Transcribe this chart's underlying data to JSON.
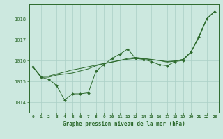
{
  "background_color": "#cce8df",
  "grid_color": "#aacfc6",
  "line_color": "#2d6a2d",
  "text_color": "#2d6a2d",
  "xlabel": "Graphe pression niveau de la mer (hPa)",
  "ylim": [
    1013.5,
    1018.7
  ],
  "yticks": [
    1014,
    1015,
    1016,
    1017,
    1018
  ],
  "xlim": [
    -0.5,
    23.5
  ],
  "xticks": [
    0,
    1,
    2,
    3,
    4,
    5,
    6,
    7,
    8,
    9,
    10,
    11,
    12,
    13,
    14,
    15,
    16,
    17,
    18,
    19,
    20,
    21,
    22,
    23
  ],
  "series": [
    [
      1015.7,
      1015.2,
      1015.1,
      1014.8,
      1014.1,
      1014.4,
      1014.4,
      1014.45,
      1015.5,
      1015.8,
      1016.1,
      1016.3,
      1016.55,
      1016.1,
      1016.05,
      1015.95,
      1015.8,
      1015.75,
      1015.95,
      1016.0,
      1016.4,
      1017.15,
      1018.0,
      1018.35
    ],
    [
      1015.7,
      1015.2,
      1015.2,
      1015.3,
      1015.35,
      1015.4,
      1015.5,
      1015.6,
      1015.75,
      1015.85,
      1015.92,
      1016.0,
      1016.1,
      1016.15,
      1016.1,
      1016.05,
      1016.0,
      1015.92,
      1015.97,
      1016.05,
      1016.4,
      1017.1,
      1018.0,
      1018.35
    ],
    [
      1015.7,
      1015.25,
      1015.25,
      1015.35,
      1015.45,
      1015.55,
      1015.62,
      1015.7,
      1015.78,
      1015.86,
      1015.93,
      1016.0,
      1016.06,
      1016.1,
      1016.08,
      1016.04,
      1016.0,
      1015.95,
      1015.98,
      1016.05,
      1016.4,
      1017.1,
      1018.0,
      1018.35
    ]
  ]
}
